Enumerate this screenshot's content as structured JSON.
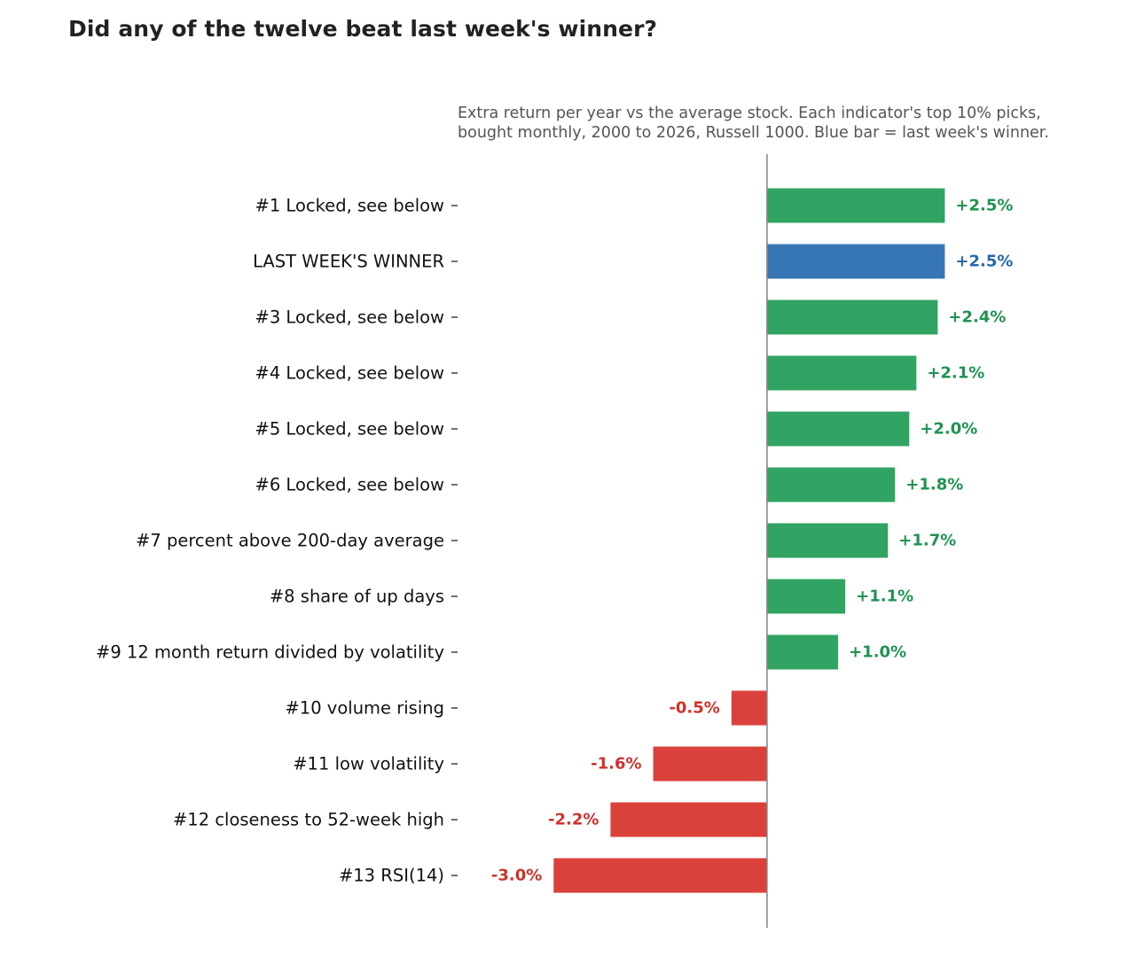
{
  "title": "Did any of the twelve beat last week's winner?",
  "subtitle_lines": [
    "Extra return per year vs the average stock. Each indicator's top 10% picks,",
    "bought monthly, 2000 to 2026, Russell 1000. Blue bar = last week's winner."
  ],
  "chart_data": {
    "type": "bar",
    "orientation": "horizontal",
    "title": "Did any of the twelve beat last week's winner?",
    "categories": [
      "#1  Locked, see below",
      "LAST WEEK'S WINNER",
      "#3  Locked, see below",
      "#4  Locked, see below",
      "#5  Locked, see below",
      "#6  Locked, see below",
      "#7  percent above 200-day average",
      "#8  share of up days",
      "#9  12 month return divided by volatility",
      "#10  volume rising",
      "#11  low volatility",
      "#12  closeness to 52-week high",
      "#13  RSI(14)"
    ],
    "values": [
      2.5,
      2.5,
      2.4,
      2.1,
      2.0,
      1.8,
      1.7,
      1.1,
      1.0,
      -0.5,
      -1.6,
      -2.2,
      -3.0
    ],
    "value_labels": [
      "+2.5%",
      "+2.5%",
      "+2.4%",
      "+2.1%",
      "+2.0%",
      "+1.8%",
      "+1.7%",
      "+1.1%",
      "+1.0%",
      "-0.5%",
      "-1.6%",
      "-2.2%",
      "-3.0%"
    ],
    "highlight_index": 1,
    "xlim": [
      -4.35,
      5.3
    ],
    "zero_line": true,
    "grid": false,
    "colors": {
      "positive": "#31a362",
      "negative": "#db413b",
      "highlight": "#3776b5",
      "positive_text": "#1e9350",
      "negative_text": "#d0312b",
      "highlight_text": "#2767ac",
      "zero_line": "#888888"
    }
  }
}
